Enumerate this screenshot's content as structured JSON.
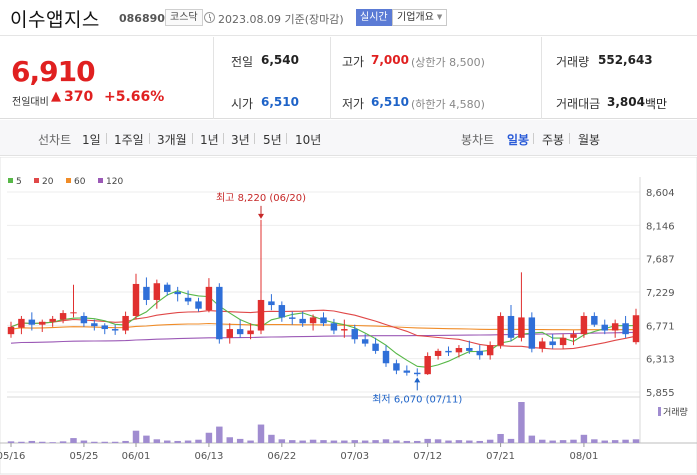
{
  "header": {
    "stock_name": "이수앱지스",
    "stock_code": "086890",
    "market": "코스닥",
    "date_text": "2023.08.09 기준(장마감)",
    "realtime_label": "실시간",
    "company_label": "기업개요"
  },
  "price": {
    "current": "6,910",
    "change_label": "전일대비",
    "change_arrow": "▲",
    "change_amount": "370",
    "change_pct": "+5.66%"
  },
  "stats": {
    "prev_close_label": "전일",
    "prev_close": "6,540",
    "high_label": "고가",
    "high": "7,000",
    "upper_limit": "(상한가 8,500)",
    "volume_label": "거래량",
    "volume": "552,643",
    "open_label": "시가",
    "open": "6,510",
    "low_label": "저가",
    "low": "6,510",
    "lower_limit": "(하한가 4,580)",
    "amount_label": "거래대금",
    "amount": "3,804",
    "amount_unit": "백만"
  },
  "tabs": {
    "line_label": "선차트",
    "line_items": [
      "1일",
      "1주일",
      "3개월",
      "1년",
      "3년",
      "5년",
      "10년"
    ],
    "candle_label": "봉차트",
    "candle_items": [
      "일봉",
      "주봉",
      "월봉"
    ],
    "active_candle": "일봉"
  },
  "chart_data": {
    "type": "candlestick",
    "legend": [
      {
        "name": "5",
        "color": "#58b848"
      },
      {
        "name": "20",
        "color": "#e04848"
      },
      {
        "name": "60",
        "color": "#f08c28"
      },
      {
        "name": "120",
        "color": "#9b59b6"
      }
    ],
    "y_ticks": [
      "8,604",
      "8,146",
      "7,687",
      "7,229",
      "6,771",
      "6,313",
      "5,855"
    ],
    "ylim": [
      5855,
      8604
    ],
    "x_ticks": [
      {
        "label": "05/16",
        "i": 0
      },
      {
        "label": "05/25",
        "i": 7
      },
      {
        "label": "06/01",
        "i": 12
      },
      {
        "label": "06/13",
        "i": 19
      },
      {
        "label": "06/22",
        "i": 26
      },
      {
        "label": "07/03",
        "i": 33
      },
      {
        "label": "07/12",
        "i": 40
      },
      {
        "label": "07/21",
        "i": 47
      },
      {
        "label": "08/01",
        "i": 55
      }
    ],
    "max_annotation": "최고 8,220 (06/20)",
    "max_index": 24,
    "min_annotation": "최저 6,070 (07/11)",
    "min_index": 39,
    "volume_label": "거래량",
    "candles": [
      [
        6650,
        6820,
        6600,
        6750
      ],
      [
        6740,
        6900,
        6650,
        6860
      ],
      [
        6850,
        6950,
        6700,
        6780
      ],
      [
        6780,
        6850,
        6680,
        6820
      ],
      [
        6820,
        6900,
        6750,
        6860
      ],
      [
        6850,
        6980,
        6800,
        6940
      ],
      [
        6940,
        7330,
        6880,
        6950
      ],
      [
        6900,
        6950,
        6750,
        6800
      ],
      [
        6800,
        6850,
        6700,
        6760
      ],
      [
        6770,
        6800,
        6650,
        6720
      ],
      [
        6720,
        6780,
        6640,
        6700
      ],
      [
        6700,
        6960,
        6650,
        6900
      ],
      [
        6900,
        7480,
        6850,
        7340
      ],
      [
        7300,
        7430,
        7050,
        7120
      ],
      [
        7120,
        7400,
        7000,
        7350
      ],
      [
        7330,
        7360,
        7180,
        7230
      ],
      [
        7230,
        7300,
        7100,
        7200
      ],
      [
        7150,
        7250,
        7050,
        7100
      ],
      [
        7100,
        7150,
        6960,
        7000
      ],
      [
        6980,
        7420,
        6950,
        7300
      ],
      [
        7300,
        7350,
        6520,
        6580
      ],
      [
        6600,
        6800,
        6520,
        6720
      ],
      [
        6720,
        6850,
        6600,
        6650
      ],
      [
        6650,
        6800,
        6580,
        6700
      ],
      [
        6700,
        8220,
        6650,
        7120
      ],
      [
        7100,
        7200,
        6980,
        7050
      ],
      [
        7050,
        7100,
        6820,
        6880
      ],
      [
        6880,
        6960,
        6780,
        6860
      ],
      [
        6860,
        6960,
        6750,
        6800
      ],
      [
        6800,
        6920,
        6700,
        6880
      ],
      [
        6880,
        6950,
        6760,
        6800
      ],
      [
        6800,
        6860,
        6650,
        6700
      ],
      [
        6700,
        6850,
        6600,
        6720
      ],
      [
        6720,
        6780,
        6520,
        6580
      ],
      [
        6580,
        6650,
        6480,
        6520
      ],
      [
        6520,
        6600,
        6380,
        6420
      ],
      [
        6420,
        6500,
        6200,
        6250
      ],
      [
        6250,
        6300,
        6100,
        6150
      ],
      [
        6150,
        6220,
        6080,
        6120
      ],
      [
        6120,
        6180,
        6070,
        6100
      ],
      [
        6100,
        6400,
        6090,
        6350
      ],
      [
        6350,
        6450,
        6300,
        6420
      ],
      [
        6420,
        6480,
        6350,
        6400
      ],
      [
        6400,
        6500,
        6330,
        6460
      ],
      [
        6460,
        6560,
        6380,
        6420
      ],
      [
        6420,
        6500,
        6300,
        6360
      ],
      [
        6360,
        6550,
        6300,
        6500
      ],
      [
        6500,
        6950,
        6450,
        6900
      ],
      [
        6900,
        7050,
        6550,
        6600
      ],
      [
        6600,
        7500,
        6550,
        6880
      ],
      [
        6880,
        6950,
        6400,
        6450
      ],
      [
        6450,
        6600,
        6400,
        6550
      ],
      [
        6550,
        6650,
        6450,
        6500
      ],
      [
        6500,
        6650,
        6450,
        6600
      ],
      [
        6600,
        6700,
        6500,
        6650
      ],
      [
        6650,
        6950,
        6600,
        6900
      ],
      [
        6900,
        6950,
        6750,
        6780
      ],
      [
        6780,
        6850,
        6650,
        6700
      ],
      [
        6700,
        6850,
        6600,
        6800
      ],
      [
        6800,
        6900,
        6600,
        6650
      ],
      [
        6540,
        7000,
        6510,
        6910
      ]
    ],
    "volumes": [
      4,
      3,
      5,
      3,
      2,
      4,
      12,
      6,
      3,
      3,
      3,
      5,
      30,
      18,
      9,
      6,
      5,
      6,
      8,
      25,
      40,
      14,
      10,
      6,
      45,
      20,
      9,
      7,
      6,
      8,
      7,
      6,
      6,
      7,
      6,
      7,
      9,
      6,
      5,
      5,
      10,
      9,
      6,
      7,
      6,
      5,
      8,
      22,
      10,
      100,
      18,
      8,
      6,
      7,
      8,
      20,
      9,
      6,
      7,
      8,
      9
    ]
  }
}
